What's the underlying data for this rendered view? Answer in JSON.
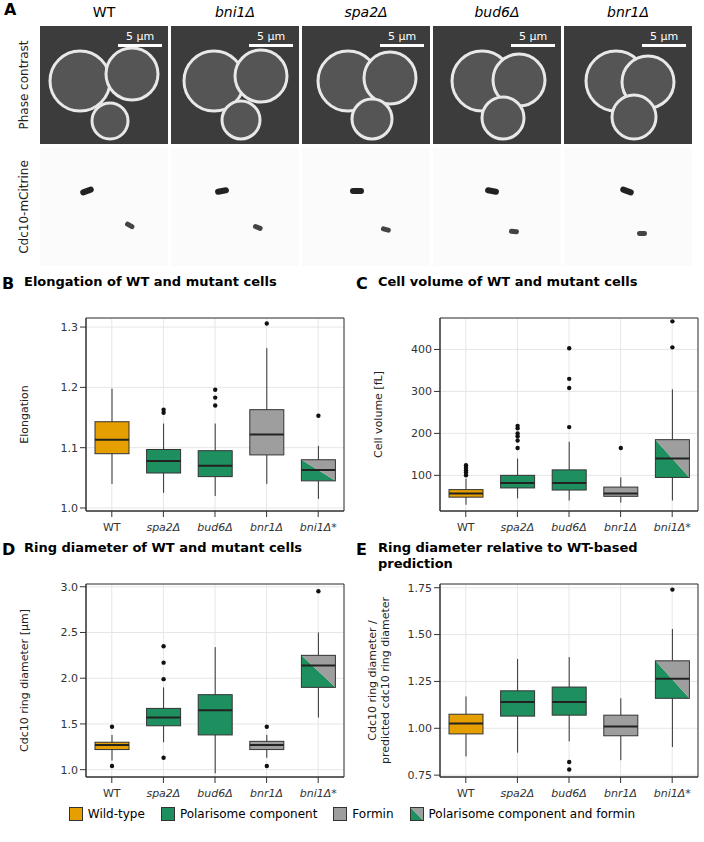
{
  "panel_a": {
    "letter": "A",
    "columns": [
      "WT",
      "bni1Δ",
      "spa2Δ",
      "bud6Δ",
      "bnr1Δ"
    ],
    "rows": [
      "Phase contrast",
      "Cdc10-mCitrine"
    ],
    "scale_bar": "5 µm"
  },
  "chart_data": [
    {
      "panel": "B",
      "type": "box",
      "title": "Elongation of WT and mutant cells",
      "y_label": "Elongation",
      "categories": [
        "WT",
        "spa2Δ",
        "bud6Δ",
        "bnr1Δ",
        "bni1Δ*"
      ],
      "ylim": [
        0.995,
        1.315
      ],
      "yticks": [
        {
          "value": 1.0,
          "label": "1.0"
        },
        1.1,
        1.2,
        1.3
      ],
      "grid": true,
      "colors": [
        "#E69F00",
        "#1E8F5E",
        "#1E8F5E",
        "#9E9E9E",
        [
          "#1E8F5E",
          "#9E9E9E"
        ]
      ],
      "boxes": [
        {
          "min": 1.04,
          "q1": 1.09,
          "median": 1.113,
          "q3": 1.143,
          "max": 1.198,
          "outliers": []
        },
        {
          "min": 1.025,
          "q1": 1.058,
          "median": 1.078,
          "q3": 1.097,
          "max": 1.14,
          "outliers": [
            1.158,
            1.163
          ]
        },
        {
          "min": 1.02,
          "q1": 1.052,
          "median": 1.07,
          "q3": 1.095,
          "max": 1.14,
          "outliers": [
            1.17,
            1.183,
            1.196
          ]
        },
        {
          "min": 1.04,
          "q1": 1.088,
          "median": 1.122,
          "q3": 1.163,
          "max": 1.265,
          "outliers": [
            1.306
          ]
        },
        {
          "min": 1.015,
          "q1": 1.045,
          "median": 1.063,
          "q3": 1.08,
          "max": 1.103,
          "outliers": [
            1.153
          ]
        }
      ]
    },
    {
      "panel": "C",
      "type": "box",
      "title": "Cell volume of WT and mutant cells",
      "y_label": "Cell volume [fL]",
      "categories": [
        "WT",
        "spa2Δ",
        "bud6Δ",
        "bnr1Δ",
        "bni1Δ*"
      ],
      "ylim": [
        15,
        475
      ],
      "yticks": [
        100,
        200,
        300,
        400
      ],
      "grid": true,
      "colors": [
        "#E69F00",
        "#1E8F5E",
        "#1E8F5E",
        "#9E9E9E",
        [
          "#1E8F5E",
          "#9E9E9E"
        ]
      ],
      "boxes": [
        {
          "min": 30,
          "q1": 48,
          "median": 57,
          "q3": 66,
          "max": 92,
          "outliers": [
            100,
            107,
            112,
            118,
            124
          ]
        },
        {
          "min": 45,
          "q1": 70,
          "median": 82,
          "q3": 100,
          "max": 140,
          "outliers": [
            165,
            183,
            193,
            200,
            212,
            218
          ]
        },
        {
          "min": 40,
          "q1": 65,
          "median": 82,
          "q3": 113,
          "max": 180,
          "outliers": [
            215,
            308,
            330,
            403
          ]
        },
        {
          "min": 35,
          "q1": 50,
          "median": 57,
          "q3": 72,
          "max": 95,
          "outliers": [
            165
          ]
        },
        {
          "min": 40,
          "q1": 95,
          "median": 140,
          "q3": 185,
          "max": 305,
          "outliers": [
            405,
            467
          ]
        }
      ]
    },
    {
      "panel": "D",
      "type": "box",
      "title": "Ring diameter of WT and mutant cells",
      "y_label": "Cdc10 ring diameter [µm]",
      "categories": [
        "WT",
        "spa2Δ",
        "bud6Δ",
        "bnr1Δ",
        "bni1Δ*"
      ],
      "ylim": [
        0.92,
        3.03
      ],
      "yticks": [
        {
          "value": 1.0,
          "label": "1.0"
        },
        1.5,
        {
          "value": 2.0,
          "label": "2.0"
        },
        2.5,
        {
          "value": 3.0,
          "label": "3.0"
        }
      ],
      "grid": true,
      "colors": [
        "#E69F00",
        "#1E8F5E",
        "#1E8F5E",
        "#9E9E9E",
        [
          "#1E8F5E",
          "#9E9E9E"
        ]
      ],
      "boxes": [
        {
          "min": 1.1,
          "q1": 1.22,
          "median": 1.27,
          "q3": 1.3,
          "max": 1.38,
          "outliers": [
            1.04,
            1.47
          ]
        },
        {
          "min": 1.3,
          "q1": 1.48,
          "median": 1.57,
          "q3": 1.67,
          "max": 1.9,
          "outliers": [
            1.13,
            1.99,
            2.17,
            2.35
          ]
        },
        {
          "min": 0.96,
          "q1": 1.38,
          "median": 1.65,
          "q3": 1.82,
          "max": 2.34,
          "outliers": []
        },
        {
          "min": 1.13,
          "q1": 1.22,
          "median": 1.27,
          "q3": 1.31,
          "max": 1.38,
          "outliers": [
            1.04,
            1.47
          ]
        },
        {
          "min": 1.57,
          "q1": 1.9,
          "median": 2.14,
          "q3": 2.25,
          "max": 2.5,
          "outliers": [
            2.95
          ]
        }
      ]
    },
    {
      "panel": "E",
      "type": "box",
      "title": "Ring diameter relative to WT-based prediction",
      "y_label": "Cdc10 ring diameter / predicted cdc10 ring diameter",
      "categories": [
        "WT",
        "spa2Δ",
        "bud6Δ",
        "bnr1Δ",
        "bni1Δ*"
      ],
      "ylim": [
        0.74,
        1.77
      ],
      "yticks": [
        0.75,
        {
          "value": 1.0,
          "label": "1.00"
        },
        1.25,
        {
          "value": 1.5,
          "label": "1.50"
        },
        1.75
      ],
      "grid": true,
      "colors": [
        "#E69F00",
        "#1E8F5E",
        "#1E8F5E",
        "#9E9E9E",
        [
          "#1E8F5E",
          "#9E9E9E"
        ]
      ],
      "boxes": [
        {
          "min": 0.85,
          "q1": 0.97,
          "median": 1.025,
          "q3": 1.075,
          "max": 1.17,
          "outliers": []
        },
        {
          "min": 0.87,
          "q1": 1.065,
          "median": 1.14,
          "q3": 1.2,
          "max": 1.37,
          "outliers": []
        },
        {
          "min": 0.93,
          "q1": 1.07,
          "median": 1.14,
          "q3": 1.22,
          "max": 1.38,
          "outliers": [
            0.82,
            0.78
          ]
        },
        {
          "min": 0.83,
          "q1": 0.96,
          "median": 1.01,
          "q3": 1.07,
          "max": 1.16,
          "outliers": []
        },
        {
          "min": 0.9,
          "q1": 1.16,
          "median": 1.265,
          "q3": 1.36,
          "max": 1.53,
          "outliers": [
            1.74
          ]
        }
      ]
    }
  ],
  "legend": {
    "legend": "bottom",
    "entries": [
      {
        "name": "Wild-type",
        "color": "#E69F00"
      },
      {
        "name": "Polarisome component",
        "color": "#1E8F5E"
      },
      {
        "name": "Formin",
        "color": "#9E9E9E"
      },
      {
        "name": "Polarisome component and formin",
        "color": [
          "#1E8F5E",
          "#9E9E9E"
        ]
      }
    ]
  }
}
